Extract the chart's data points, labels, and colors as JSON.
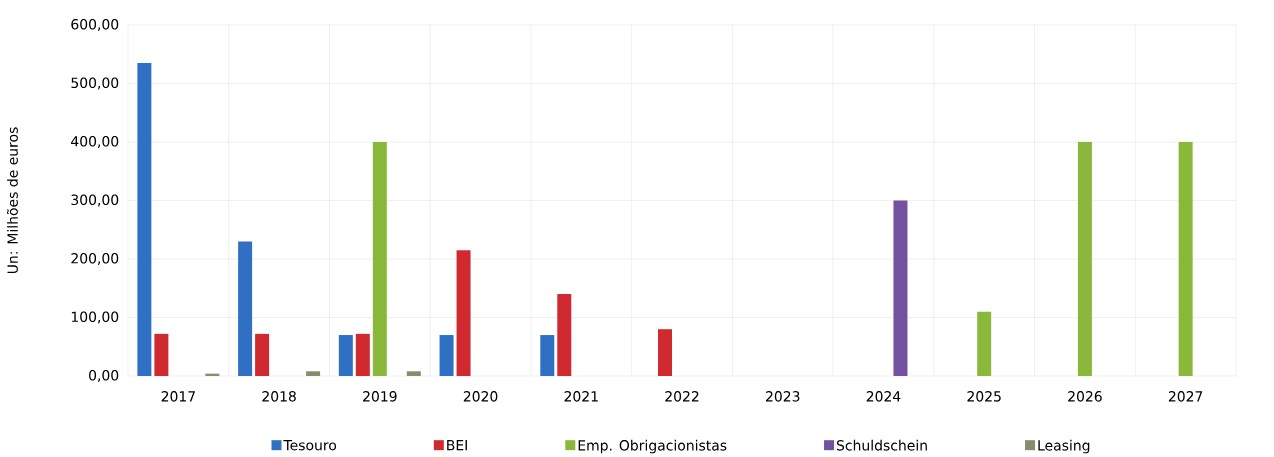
{
  "chart_data": {
    "type": "bar",
    "ylabel": "Un: Milhões de euros",
    "categories": [
      "2017",
      "2018",
      "2019",
      "2020",
      "2021",
      "2022",
      "2023",
      "2024",
      "2025",
      "2026",
      "2027"
    ],
    "series": [
      {
        "name": "Tesouro",
        "color": "#3070c4",
        "values": [
          535,
          230,
          70,
          70,
          70,
          null,
          null,
          null,
          null,
          null,
          null
        ]
      },
      {
        "name": "BEI",
        "color": "#d02a30",
        "values": [
          72,
          72,
          72,
          215,
          140,
          80,
          null,
          null,
          null,
          null,
          null
        ]
      },
      {
        "name": "Emp. Obrigacionistas",
        "color": "#8ab83a",
        "values": [
          null,
          null,
          400,
          null,
          null,
          null,
          null,
          null,
          110,
          400,
          400
        ]
      },
      {
        "name": "Schuldschein",
        "color": "#7450a0",
        "values": [
          null,
          null,
          null,
          null,
          null,
          null,
          null,
          300,
          null,
          null,
          null
        ]
      },
      {
        "name": "Leasing",
        "color": "#8a8a6c",
        "values": [
          4,
          8,
          8,
          null,
          null,
          null,
          null,
          null,
          null,
          null,
          null
        ]
      }
    ],
    "ylim": [
      0,
      600
    ],
    "yticks": [
      {
        "value": 0,
        "label": "0,00"
      },
      {
        "value": 100,
        "label": "100,00"
      },
      {
        "value": 200,
        "label": "200,00"
      },
      {
        "value": 300,
        "label": "300,00"
      },
      {
        "value": 400,
        "label": "400,00"
      },
      {
        "value": 500,
        "label": "500,00"
      },
      {
        "value": 600,
        "label": "600,00"
      }
    ],
    "grid": true,
    "legend": "bottom"
  }
}
